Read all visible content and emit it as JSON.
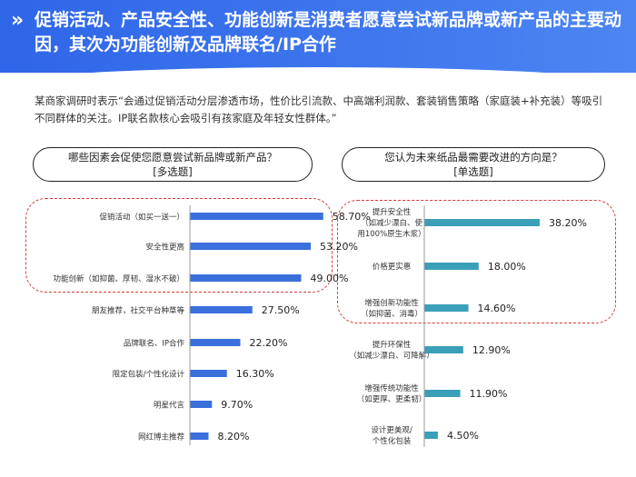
{
  "header": {
    "title": "促销活动、产品安全性、功能创新是消费者愿意尝试新品牌或新产品的主要动因，其次为功能创新及品牌联名/IP合作"
  },
  "intro": "某商家调研时表示“会通过促销活动分层渗透市场，性价比引流款、中高端利润款、套装销售策略（家庭装+补充装）等吸引不同群体的关注。IP联名款核心会吸引有孩家庭及年轻女性群体。”",
  "colors": {
    "header": "#2f66e8",
    "left_bar": "#3a6fdc",
    "right_bar": "#3aa0b8",
    "dash": "#d83b3b"
  },
  "chart_data": [
    {
      "type": "bar",
      "orientation": "horizontal",
      "question": "哪些因素会促使您愿意尝试新品牌或新产品？",
      "question_type": "[多选题]",
      "categories": [
        "促销活动（如买一送一）",
        "安全性更高",
        "功能创新（如抑菌、厚韧、湿水不破）",
        "朋友推荐，社交平台种草等",
        "品牌联名、IP合作",
        "限定包装/个性化设计",
        "明星代言",
        "网红博主推荐"
      ],
      "values": [
        58.7,
        53.2,
        49.0,
        27.5,
        22.2,
        16.3,
        9.7,
        8.2
      ],
      "value_labels": [
        "58.70%",
        "53.20%",
        "49.00%",
        "27.50%",
        "22.20%",
        "16.30%",
        "9.70%",
        "8.20%"
      ],
      "highlighted": [
        0,
        1,
        2
      ],
      "xlim": [
        0,
        100
      ]
    },
    {
      "type": "bar",
      "orientation": "horizontal",
      "question": "您认为未来纸品最需要改进的方向是？",
      "question_type": "[单选题]",
      "categories": [
        [
          "提升安全性",
          "（如减少漂白、使",
          "用100%原生木浆）"
        ],
        [
          "价格更实惠"
        ],
        [
          "增强创新功能性",
          "（如抑菌、消毒）"
        ],
        [
          "提升环保性",
          "（如减少漂白、可降解）"
        ],
        [
          "增强传统功能性",
          "（如更厚、更柔韧）"
        ],
        [
          "设计更美观/",
          "个性化包装"
        ]
      ],
      "values": [
        38.2,
        18.0,
        14.6,
        12.9,
        11.9,
        4.5
      ],
      "value_labels": [
        "38.20%",
        "18.00%",
        "14.60%",
        "12.90%",
        "11.90%",
        "4.50%"
      ],
      "highlighted": [
        0,
        1,
        2
      ],
      "xlim": [
        0,
        100
      ]
    }
  ]
}
